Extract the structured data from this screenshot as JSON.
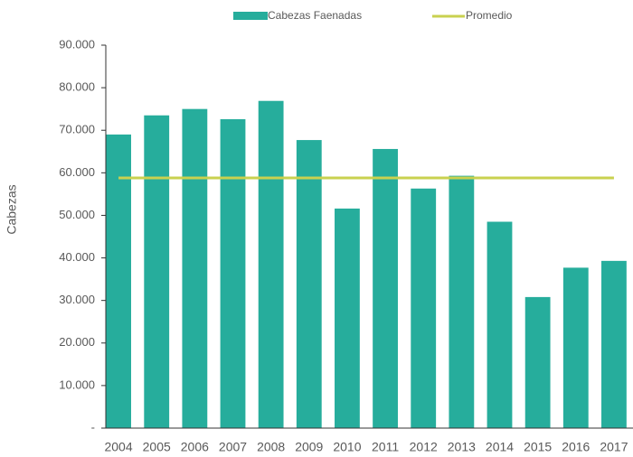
{
  "chart_data": {
    "type": "bar-line",
    "y_axis_label": "Cabezas",
    "categories": [
      "2004",
      "2005",
      "2006",
      "2007",
      "2008",
      "2009",
      "2010",
      "2011",
      "2012",
      "2013",
      "2014",
      "2015",
      "2016",
      "2017"
    ],
    "series": [
      {
        "name": "Cabezas Faenadas",
        "type": "bar",
        "color": "#26ad9c",
        "values": [
          69000,
          73500,
          75000,
          72600,
          76900,
          67700,
          51600,
          65600,
          56300,
          59300,
          48500,
          30800,
          37700,
          39300
        ]
      },
      {
        "name": "Promedio",
        "type": "line",
        "color": "#c9d14f",
        "values": [
          58800,
          58800,
          58800,
          58800,
          58800,
          58800,
          58800,
          58800,
          58800,
          58800,
          58800,
          58800,
          58800,
          58800
        ]
      }
    ],
    "ylim": [
      0,
      90000
    ],
    "yticks": [
      {
        "value": 0,
        "label": "-"
      },
      {
        "value": 10000,
        "label": "10.000"
      },
      {
        "value": 20000,
        "label": "20.000"
      },
      {
        "value": 30000,
        "label": "30.000"
      },
      {
        "value": 40000,
        "label": "40.000"
      },
      {
        "value": 50000,
        "label": "50.000"
      },
      {
        "value": 60000,
        "label": "60.000"
      },
      {
        "value": 70000,
        "label": "70.000"
      },
      {
        "value": 80000,
        "label": "80.000"
      },
      {
        "value": 90000,
        "label": "90.000"
      }
    ],
    "legend": "top"
  }
}
